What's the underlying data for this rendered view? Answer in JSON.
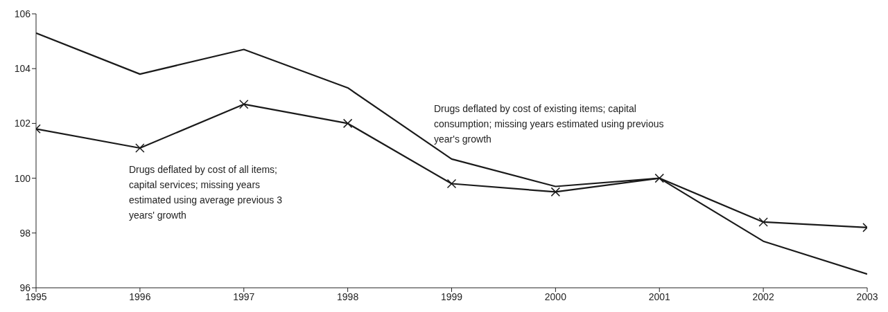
{
  "chart_data": {
    "type": "line",
    "x": [
      1995,
      1996,
      1997,
      1998,
      1999,
      2000,
      2001,
      2002,
      2003
    ],
    "series": [
      {
        "name": "Drugs deflated by cost of existing items; capital consumption; missing years estimated using previous year's growth",
        "color": "#1a1a1a",
        "marker": "none",
        "values": [
          105.3,
          103.8,
          104.7,
          103.3,
          100.7,
          99.7,
          100.0,
          97.7,
          96.5
        ]
      },
      {
        "name": "Drugs deflated by cost of all items; capital services; missing years estimated using average previous 3 years' growth",
        "color": "#1a1a1a",
        "marker": "cross",
        "values": [
          101.8,
          101.1,
          102.7,
          102.0,
          99.8,
          99.5,
          100.0,
          98.4,
          98.2
        ]
      }
    ],
    "xlim": [
      1995,
      2003
    ],
    "xticks": [
      1995,
      1996,
      1997,
      1998,
      1999,
      2000,
      2001,
      2002,
      2003
    ],
    "ylim": [
      96,
      106
    ],
    "yticks": [
      96,
      98,
      100,
      102,
      104,
      106
    ],
    "grid": false,
    "legend": false,
    "line_style": "solid"
  }
}
